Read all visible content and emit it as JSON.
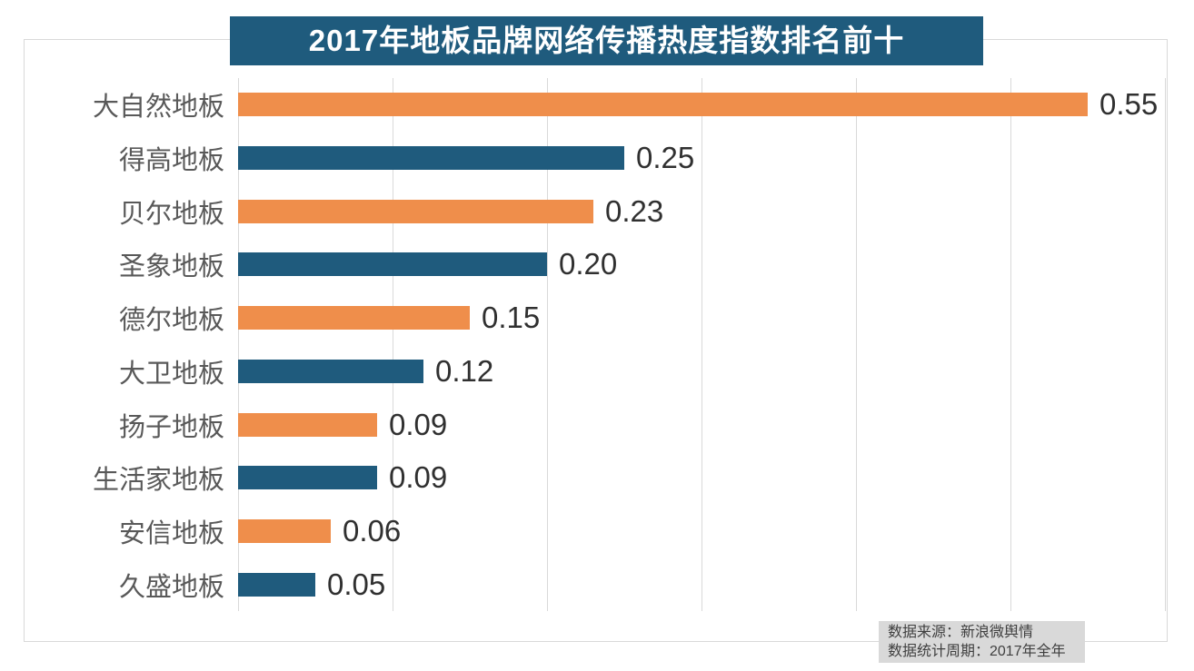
{
  "title": {
    "text": "2017年地板品牌网络传播热度指数排名前十"
  },
  "chart_data": {
    "type": "bar",
    "orientation": "horizontal",
    "title": "2017年地板品牌网络传播热度指数排名前十",
    "categories": [
      "大自然地板",
      "得高地板",
      "贝尔地板",
      "圣象地板",
      "德尔地板",
      "大卫地板",
      "扬子地板",
      "生活家地板",
      "安信地板",
      "久盛地板"
    ],
    "values": [
      0.55,
      0.25,
      0.23,
      0.2,
      0.15,
      0.12,
      0.09,
      0.09,
      0.06,
      0.05
    ],
    "value_labels": [
      "0.55",
      "0.25",
      "0.23",
      "0.20",
      "0.15",
      "0.12",
      "0.09",
      "0.09",
      "0.06",
      "0.05"
    ],
    "xlabel": "",
    "ylabel": "",
    "xlim": [
      0,
      0.6
    ],
    "gridline_step": 0.1,
    "grid": "vertical-only",
    "legend": "none",
    "bar_color_pattern": [
      "#ef8e4b",
      "#1f5b7d"
    ]
  },
  "source_note": {
    "line1": "数据来源：新浪微舆情",
    "line2": "数据统计周期：2017年全年"
  },
  "colors": {
    "orange_bar": "#ef8e4b",
    "teal_bar": "#1f5b7d",
    "title_bg": "#1f5b7d",
    "title_text": "#ffffff",
    "gridline": "#d9d9d9",
    "frame_border": "#d9d9d9",
    "category_label": "#595959",
    "value_label": "#303030",
    "note_bg": "#d9d9d9",
    "note_text": "#3f3f3f"
  }
}
